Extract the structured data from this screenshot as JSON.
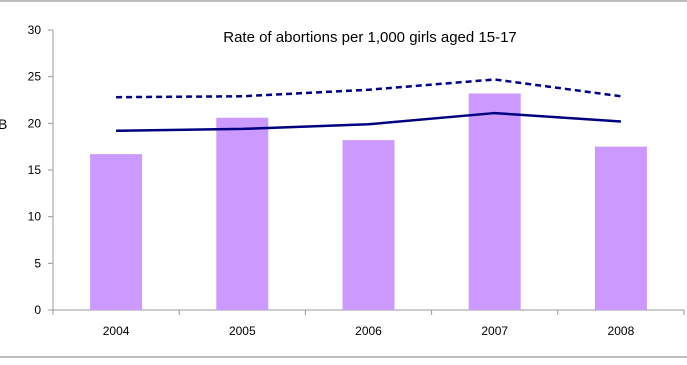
{
  "chart_data": {
    "type": "bar",
    "title": "Rate of abortions per 1,000 girls aged 15-17",
    "clipped_label": "B",
    "categories": [
      "2004",
      "2005",
      "2006",
      "2007",
      "2008"
    ],
    "values": [
      16.7,
      20.6,
      18.2,
      23.2,
      17.5
    ],
    "bar_color": "#cc99ff",
    "lines": [
      {
        "style": "solid",
        "color": "#000080",
        "values": [
          19.2,
          19.4,
          19.9,
          21.1,
          20.2
        ]
      },
      {
        "style": "dashed",
        "color": "#000080",
        "values": [
          22.8,
          22.9,
          23.6,
          24.7,
          22.9
        ]
      }
    ],
    "ylim": [
      0,
      30
    ],
    "yticks": [
      0,
      5,
      10,
      15,
      20,
      25,
      30
    ],
    "grid": false,
    "legend": "none"
  }
}
